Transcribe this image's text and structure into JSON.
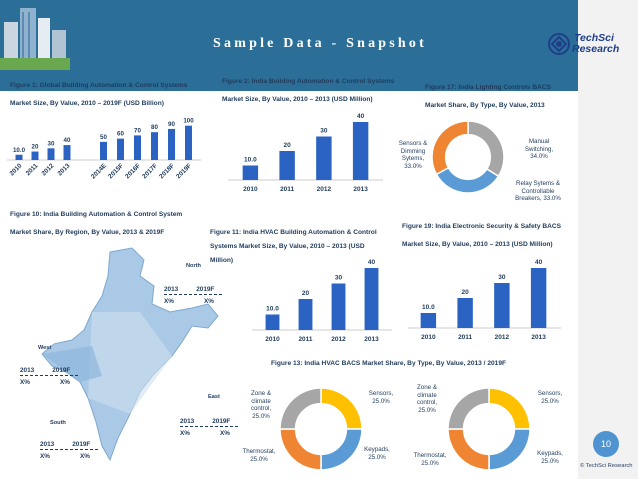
{
  "header": {
    "title": "Sample Data - Snapshot"
  },
  "logo": {
    "line1": "TechSci",
    "line2": "Research"
  },
  "page_number": "10",
  "copyright": "© TechSci Research",
  "colors": {
    "bar": "#2b63c3",
    "header": "#2b6f99",
    "donut_orange": "#ef8533",
    "donut_grey": "#a6a6a6",
    "donut_blue": "#5b9bd5",
    "donut_yellow": "#ffc000"
  },
  "chart_data": [
    {
      "id": "fig1",
      "type": "bar",
      "title_line1": "Figure 1: Global Building Automation & Control Systems",
      "title_line2": "Market Size, By Value, 2010 – 2019F (USD Billion)",
      "groups": [
        {
          "categories": [
            "2010",
            "2011",
            "2012",
            "2013"
          ],
          "values": [
            10.0,
            20,
            30,
            40
          ],
          "labels": [
            "10.0",
            "20",
            "30",
            "40"
          ]
        },
        {
          "categories": [
            "2014E",
            "2015F",
            "2016F",
            "2017F",
            "2018F",
            "2019F"
          ],
          "values": [
            50,
            60,
            70,
            80,
            90,
            100
          ],
          "labels": [
            "50",
            "60",
            "70",
            "80",
            "90",
            "100"
          ]
        }
      ]
    },
    {
      "id": "fig2",
      "type": "bar",
      "title_line1": "Figure 2: India Building Automation & Control Systems",
      "title_line2": "Market Size, By Value, 2010 – 2013 (USD Million)",
      "categories": [
        "2010",
        "2011",
        "2012",
        "2013"
      ],
      "values": [
        10.0,
        20,
        30,
        40
      ],
      "labels": [
        "10.0",
        "20",
        "30",
        "40"
      ]
    },
    {
      "id": "fig17",
      "type": "pie",
      "title_line1": "Figure 17: India Lighting Controls BACS",
      "title_line2": "Market Share, By Type, By Value, 2013",
      "slices": [
        {
          "label": "Manual Switching, 34.0%",
          "value": 34.0,
          "color": "#a6a6a6"
        },
        {
          "label": "Relay Sytems & Controllable Breakers, 33.0%",
          "value": 33.0,
          "color": "#5b9bd5"
        },
        {
          "label": "Sensors & Dimming Sytems, 33.0%",
          "value": 33.0,
          "color": "#ef8533"
        }
      ]
    },
    {
      "id": "fig11",
      "type": "bar",
      "title_line1": "Figure 11: India HVAC Building Automation & Control",
      "title_line2": "Systems Market Size, By Value, 2010 – 2013 (USD",
      "title_line3": "Million)",
      "categories": [
        "2010",
        "2011",
        "2012",
        "2013"
      ],
      "values": [
        10.0,
        20,
        30,
        40
      ],
      "labels": [
        "10.0",
        "20",
        "30",
        "40"
      ]
    },
    {
      "id": "fig19",
      "type": "bar",
      "title_line1": "Figure 19: India Electronic Security & Safety BACS",
      "title_line2": "Market Size, By Value, 2010 – 2013 (USD Million)",
      "categories": [
        "2010",
        "2011",
        "2012",
        "2013"
      ],
      "values": [
        10.0,
        20,
        30,
        40
      ],
      "labels": [
        "10.0",
        "20",
        "30",
        "40"
      ]
    },
    {
      "id": "fig13",
      "type": "pie",
      "title": "Figure 13: India HVAC BACS Market Share, By Type, By Value, 2013 / 2019F",
      "donuts": [
        {
          "year": "2013",
          "slices": [
            {
              "label": "Sensors, 25.0%",
              "value": 25.0,
              "color": "#ffc000"
            },
            {
              "label": "Keypads, 25.0%",
              "value": 25.0,
              "color": "#5b9bd5"
            },
            {
              "label": "Thermostat, 25.0%",
              "value": 25.0,
              "color": "#ef8533"
            },
            {
              "label": "Zone & climate control, 25.0%",
              "value": 25.0,
              "color": "#a6a6a6"
            }
          ]
        },
        {
          "year": "2019F",
          "slices": [
            {
              "label": "Sensors, 25.0%",
              "value": 25.0,
              "color": "#ffc000"
            },
            {
              "label": "Keypads, 25.0%",
              "value": 25.0,
              "color": "#5b9bd5"
            },
            {
              "label": "Thermostat, 25.0%",
              "value": 25.0,
              "color": "#ef8533"
            },
            {
              "label": "Zone & climate control, 25.0%",
              "value": 25.0,
              "color": "#a6a6a6"
            }
          ]
        }
      ]
    }
  ],
  "fig10": {
    "title_line1": "Figure 10: India Building Automation & Control System",
    "title_line2": "Market Share, By Region, By Value, 2013 & 2019F",
    "regions": {
      "north": {
        "name": "North",
        "y1": "2013",
        "y2": "2019F",
        "v1": "X%",
        "v2": "X%"
      },
      "west": {
        "name": "West",
        "y1": "2013",
        "y2": "2019F",
        "v1": "X%",
        "v2": "X%"
      },
      "east": {
        "name": "East",
        "y1": "2013",
        "y2": "2019F",
        "v1": "X%",
        "v2": "X%"
      },
      "south": {
        "name": "South",
        "y1": "2013",
        "y2": "2019F",
        "v1": "X%",
        "v2": "X%"
      }
    }
  },
  "icons": [
    "buildings-illustration",
    "techsci-logo-icon",
    "india-map-illustration"
  ]
}
